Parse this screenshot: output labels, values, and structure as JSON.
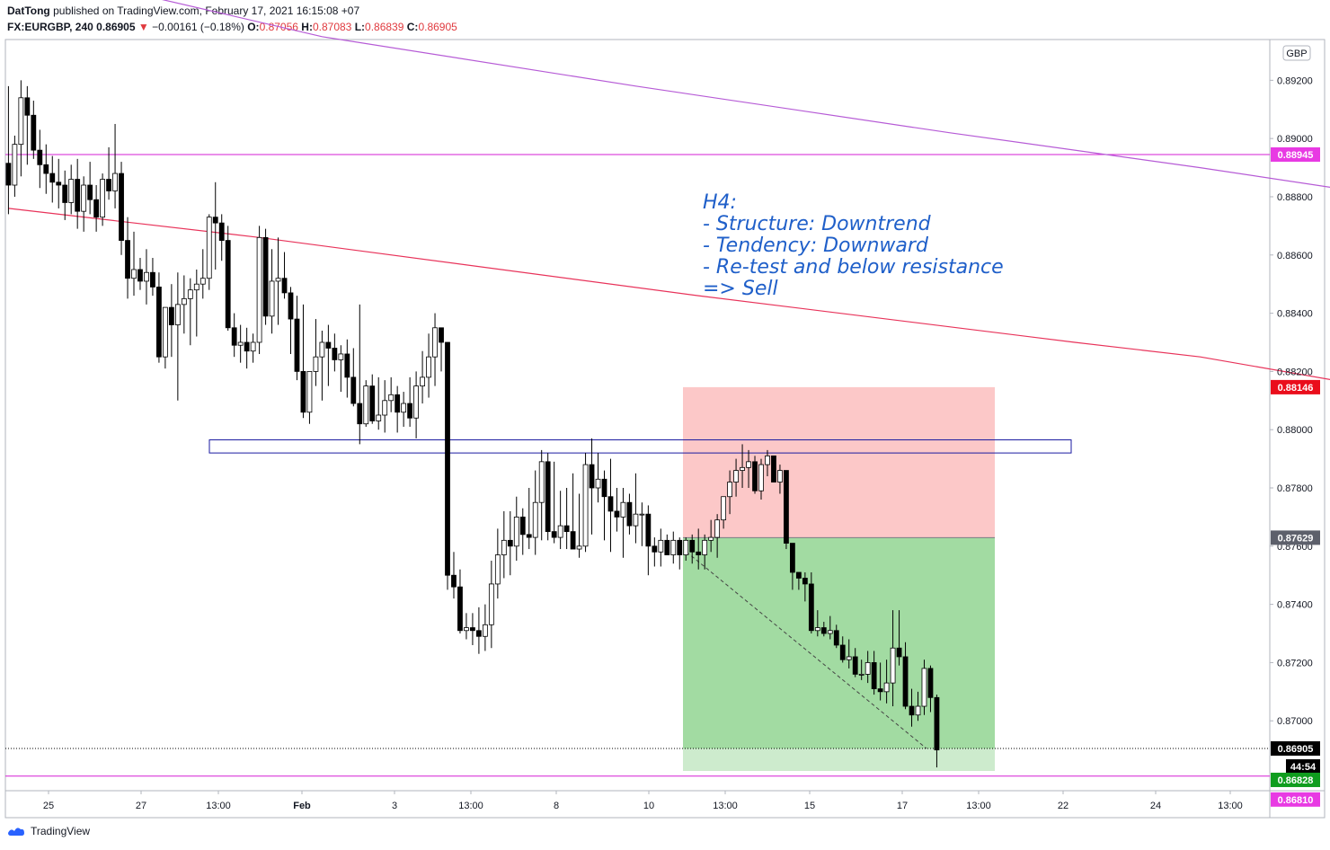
{
  "header": {
    "author": "DatTong",
    "published_text": "published on TradingView.com, February 17, 2021 16:15:08 +07",
    "symbol": "FX:EURGBP, 240",
    "last": "0.86905",
    "change": "−0.00161 (−0.18%)",
    "o_label": "O:",
    "o_value": "0.87056",
    "h_label": "H:",
    "h_value": "0.87083",
    "l_label": "L:",
    "l_value": "0.86839",
    "c_label": "C:",
    "c_value": "0.86905"
  },
  "footer": {
    "brand": "TradingView"
  },
  "colors": {
    "up_body": "#ffffff",
    "down_body": "#000000",
    "wick": "#000000",
    "ma_fast": "#e8335a",
    "ma_slow": "#b65bd6",
    "hline": "#d61fd6",
    "zone_border": "#1a1aa0",
    "stop_zone": "#fcc8c8",
    "target_zone": "#a2dba2",
    "annotation": "#1f5fc9",
    "axis_text": "#131722"
  },
  "chart_data": {
    "type": "candlestick",
    "currency_badge": "GBP",
    "ylim": [
      0.8676,
      0.8934
    ],
    "y_ticks": [
      "0.89200",
      "0.89000",
      "0.88800",
      "0.88600",
      "0.88400",
      "0.88200",
      "0.88000",
      "0.87800",
      "0.87600",
      "0.87400",
      "0.87200",
      "0.87000"
    ],
    "x_ticks": [
      "25",
      "27",
      "13:00",
      "Feb",
      "3",
      "13:00",
      "8",
      "10",
      "13:00",
      "15",
      "17",
      "13:00",
      "22",
      "24",
      "13:00"
    ],
    "price_labels": [
      {
        "text": "0.88945",
        "role": "horizontal line",
        "bg": "#e83ae3",
        "fg": "#ffffff"
      },
      {
        "text": "0.88146",
        "role": "stop",
        "bg": "#ea0d1b",
        "fg": "#ffffff"
      },
      {
        "text": "0.87629",
        "role": "entry",
        "bg": "#5d606b",
        "fg": "#ffffff"
      },
      {
        "text": "0.86905",
        "role": "last price",
        "bg": "#000000",
        "fg": "#ffffff"
      },
      {
        "text": "44:54",
        "role": "bar countdown",
        "bg": "#000000",
        "fg": "#ffffff"
      },
      {
        "text": "0.86828",
        "role": "target",
        "bg": "#0f9d1e",
        "fg": "#ffffff"
      },
      {
        "text": "0.86810",
        "role": "horizontal line",
        "bg": "#e83ae3",
        "fg": "#ffffff"
      }
    ],
    "annotation": [
      "H4:",
      "- Structure: Downtrend",
      "- Tendency: Downward",
      "- Re-test and below resistance",
      "=> Sell"
    ],
    "horizontal_lines": [
      0.88945,
      0.8681
    ],
    "resistance_zone": [
      0.8792,
      0.87965
    ],
    "position": {
      "type": "short",
      "entry": 0.87629,
      "stop": 0.88146,
      "target": 0.86828
    },
    "ma_fast": [
      [
        0,
        0.8876
      ],
      [
        40,
        0.8866
      ],
      [
        110,
        0.8846
      ],
      [
        170,
        0.883
      ],
      [
        190,
        0.8825
      ],
      [
        230,
        0.881
      ],
      [
        255,
        0.88
      ],
      [
        290,
        0.8787
      ],
      [
        300,
        0.8781
      ],
      [
        310,
        0.8772
      ]
    ],
    "ma_slow": [
      [
        20,
        0.895
      ],
      [
        50,
        0.8935
      ],
      [
        100,
        0.8918
      ],
      [
        150,
        0.8902
      ],
      [
        190,
        0.889
      ],
      [
        230,
        0.8877
      ],
      [
        270,
        0.886
      ],
      [
        310,
        0.8822
      ]
    ],
    "candles": [
      [
        0.88915,
        0.8918,
        0.8874,
        0.8884
      ],
      [
        0.8884,
        0.8901,
        0.888,
        0.8898
      ],
      [
        0.8898,
        0.892,
        0.8887,
        0.8914
      ],
      [
        0.8914,
        0.8918,
        0.8891,
        0.8908
      ],
      [
        0.8908,
        0.8913,
        0.8893,
        0.8896
      ],
      [
        0.8896,
        0.8903,
        0.8883,
        0.8891
      ],
      [
        0.8891,
        0.8898,
        0.8881,
        0.8888
      ],
      [
        0.8888,
        0.8894,
        0.8878,
        0.8885
      ],
      [
        0.8885,
        0.8893,
        0.8876,
        0.8884
      ],
      [
        0.8884,
        0.8889,
        0.8872,
        0.8878
      ],
      [
        0.8878,
        0.8891,
        0.8874,
        0.8886
      ],
      [
        0.8886,
        0.8893,
        0.8869,
        0.8875
      ],
      [
        0.8875,
        0.8887,
        0.8868,
        0.8884
      ],
      [
        0.8884,
        0.8892,
        0.8874,
        0.8879
      ],
      [
        0.8879,
        0.8884,
        0.8868,
        0.8873
      ],
      [
        0.8873,
        0.8888,
        0.887,
        0.8886
      ],
      [
        0.8886,
        0.8897,
        0.8879,
        0.8882
      ],
      [
        0.8882,
        0.8905,
        0.8876,
        0.8888
      ],
      [
        0.8888,
        0.8892,
        0.886,
        0.8865
      ],
      [
        0.8865,
        0.8873,
        0.8845,
        0.8852
      ],
      [
        0.8852,
        0.8868,
        0.8846,
        0.8855
      ],
      [
        0.8855,
        0.8859,
        0.8848,
        0.8851
      ],
      [
        0.8851,
        0.8862,
        0.8843,
        0.8854
      ],
      [
        0.8854,
        0.8859,
        0.8846,
        0.8849
      ],
      [
        0.8849,
        0.8854,
        0.8823,
        0.8825
      ],
      [
        0.8825,
        0.8841,
        0.8821,
        0.8842
      ],
      [
        0.8842,
        0.885,
        0.8825,
        0.8836
      ],
      [
        0.8836,
        0.8854,
        0.881,
        0.8843
      ],
      [
        0.8843,
        0.8853,
        0.8833,
        0.8845
      ],
      [
        0.8845,
        0.8852,
        0.8829,
        0.8848
      ],
      [
        0.8848,
        0.8855,
        0.8832,
        0.885
      ],
      [
        0.885,
        0.8862,
        0.8845,
        0.8852
      ],
      [
        0.8852,
        0.8874,
        0.8848,
        0.8873
      ],
      [
        0.8873,
        0.8885,
        0.8855,
        0.8871
      ],
      [
        0.8871,
        0.8874,
        0.8858,
        0.8865
      ],
      [
        0.8865,
        0.887,
        0.8834,
        0.8835
      ],
      [
        0.8835,
        0.884,
        0.8825,
        0.8829
      ],
      [
        0.8829,
        0.8836,
        0.8823,
        0.883
      ],
      [
        0.883,
        0.8835,
        0.8821,
        0.8827
      ],
      [
        0.8827,
        0.8833,
        0.8823,
        0.883
      ],
      [
        0.883,
        0.887,
        0.8826,
        0.8866
      ],
      [
        0.8866,
        0.8869,
        0.8836,
        0.8839
      ],
      [
        0.8839,
        0.8862,
        0.8833,
        0.8851
      ],
      [
        0.8851,
        0.8866,
        0.8836,
        0.8852
      ],
      [
        0.8852,
        0.8861,
        0.8845,
        0.8847
      ],
      [
        0.8847,
        0.8849,
        0.8826,
        0.8838
      ],
      [
        0.8838,
        0.8846,
        0.8817,
        0.882
      ],
      [
        0.882,
        0.8843,
        0.8804,
        0.8806
      ],
      [
        0.8806,
        0.882,
        0.8802,
        0.882
      ],
      [
        0.882,
        0.8838,
        0.8815,
        0.8825
      ],
      [
        0.8825,
        0.8834,
        0.881,
        0.883
      ],
      [
        0.883,
        0.8836,
        0.8815,
        0.8828
      ],
      [
        0.8828,
        0.8833,
        0.882,
        0.8824
      ],
      [
        0.8824,
        0.8829,
        0.8813,
        0.8826
      ],
      [
        0.8826,
        0.8831,
        0.8811,
        0.8818
      ],
      [
        0.8818,
        0.8828,
        0.8808,
        0.8809
      ],
      [
        0.8809,
        0.8843,
        0.8795,
        0.8802
      ],
      [
        0.8802,
        0.8817,
        0.8801,
        0.8815
      ],
      [
        0.8815,
        0.8819,
        0.8802,
        0.8803
      ],
      [
        0.8803,
        0.8818,
        0.88,
        0.8805
      ],
      [
        0.8805,
        0.8817,
        0.8799,
        0.881
      ],
      [
        0.881,
        0.8818,
        0.8806,
        0.8812
      ],
      [
        0.8812,
        0.8815,
        0.8799,
        0.8806
      ],
      [
        0.8806,
        0.8813,
        0.8801,
        0.8809
      ],
      [
        0.8809,
        0.8818,
        0.8801,
        0.8804
      ],
      [
        0.8804,
        0.882,
        0.8797,
        0.8815
      ],
      [
        0.8815,
        0.8827,
        0.8809,
        0.8818
      ],
      [
        0.8818,
        0.8833,
        0.8811,
        0.8825
      ],
      [
        0.8825,
        0.884,
        0.8815,
        0.8835
      ],
      [
        0.8835,
        0.8833,
        0.882,
        0.883
      ],
      [
        0.883,
        0.883,
        0.8745,
        0.875
      ],
      [
        0.875,
        0.8758,
        0.8742,
        0.8746
      ],
      [
        0.8746,
        0.8752,
        0.873,
        0.8731
      ],
      [
        0.8731,
        0.8737,
        0.8728,
        0.8732
      ],
      [
        0.8732,
        0.8737,
        0.8726,
        0.8731
      ],
      [
        0.8731,
        0.8739,
        0.8723,
        0.8729
      ],
      [
        0.8729,
        0.874,
        0.8724,
        0.8733
      ],
      [
        0.8733,
        0.8755,
        0.8725,
        0.8747
      ],
      [
        0.8747,
        0.8766,
        0.8742,
        0.8757
      ],
      [
        0.8757,
        0.8772,
        0.8749,
        0.8762
      ],
      [
        0.8762,
        0.8772,
        0.875,
        0.876
      ],
      [
        0.876,
        0.8777,
        0.8755,
        0.877
      ],
      [
        0.877,
        0.8773,
        0.8757,
        0.8764
      ],
      [
        0.8764,
        0.878,
        0.8759,
        0.8763
      ],
      [
        0.8763,
        0.8786,
        0.8757,
        0.8775
      ],
      [
        0.8775,
        0.8793,
        0.8762,
        0.8789
      ],
      [
        0.8789,
        0.8792,
        0.8762,
        0.8765
      ],
      [
        0.8765,
        0.8789,
        0.8761,
        0.8763
      ],
      [
        0.8763,
        0.8779,
        0.8759,
        0.8767
      ],
      [
        0.8767,
        0.878,
        0.8759,
        0.8765
      ],
      [
        0.8765,
        0.8785,
        0.876,
        0.8759
      ],
      [
        0.8759,
        0.8778,
        0.8756,
        0.876
      ],
      [
        0.876,
        0.8792,
        0.8758,
        0.8788
      ],
      [
        0.8788,
        0.8797,
        0.8764,
        0.878
      ],
      [
        0.878,
        0.8792,
        0.8775,
        0.8783
      ],
      [
        0.8783,
        0.8786,
        0.8762,
        0.8777
      ],
      [
        0.8777,
        0.879,
        0.8758,
        0.8772
      ],
      [
        0.8772,
        0.878,
        0.8765,
        0.877
      ],
      [
        0.877,
        0.878,
        0.8756,
        0.8775
      ],
      [
        0.8775,
        0.8778,
        0.8764,
        0.8767
      ],
      [
        0.8767,
        0.8785,
        0.8761,
        0.8771
      ],
      [
        0.8771,
        0.8775,
        0.876,
        0.8771
      ],
      [
        0.8771,
        0.8774,
        0.875,
        0.876
      ],
      [
        0.876,
        0.8763,
        0.8753,
        0.8758
      ],
      [
        0.8758,
        0.8766,
        0.8753,
        0.8762
      ],
      [
        0.8762,
        0.8764,
        0.8757,
        0.8757
      ],
      [
        0.8757,
        0.8765,
        0.8754,
        0.8762
      ],
      [
        0.8762,
        0.8763,
        0.8752,
        0.8757
      ],
      [
        0.8757,
        0.8763,
        0.8755,
        0.8762
      ],
      [
        0.8762,
        0.8764,
        0.8754,
        0.8758
      ],
      [
        0.8758,
        0.8766,
        0.8752,
        0.8757
      ],
      [
        0.8757,
        0.8764,
        0.8752,
        0.8762
      ],
      [
        0.8762,
        0.8769,
        0.8758,
        0.8763
      ],
      [
        0.8763,
        0.8771,
        0.8756,
        0.8769
      ],
      [
        0.8769,
        0.8777,
        0.8766,
        0.8777
      ],
      [
        0.8777,
        0.8786,
        0.8771,
        0.8782
      ],
      [
        0.8782,
        0.879,
        0.8777,
        0.8786
      ],
      [
        0.8786,
        0.8795,
        0.878,
        0.8787
      ],
      [
        0.8787,
        0.8793,
        0.878,
        0.8789
      ],
      [
        0.8789,
        0.8791,
        0.8778,
        0.8779
      ],
      [
        0.8779,
        0.879,
        0.8776,
        0.8788
      ],
      [
        0.8788,
        0.8793,
        0.8784,
        0.8791
      ],
      [
        0.8791,
        0.8791,
        0.8782,
        0.8782
      ],
      [
        0.8782,
        0.8788,
        0.8778,
        0.8786
      ],
      [
        0.8786,
        0.8786,
        0.8759,
        0.8761
      ],
      [
        0.8761,
        0.8761,
        0.8745,
        0.8751
      ],
      [
        0.8751,
        0.8751,
        0.8745,
        0.8749
      ],
      [
        0.8749,
        0.8751,
        0.8741,
        0.8747
      ],
      [
        0.8747,
        0.8751,
        0.873,
        0.8731
      ],
      [
        0.8731,
        0.8738,
        0.8729,
        0.8732
      ],
      [
        0.8732,
        0.8734,
        0.8729,
        0.873
      ],
      [
        0.873,
        0.8736,
        0.8728,
        0.8731
      ],
      [
        0.8731,
        0.8733,
        0.8725,
        0.8726
      ],
      [
        0.8726,
        0.8729,
        0.872,
        0.8721
      ],
      [
        0.8721,
        0.8728,
        0.8718,
        0.8722
      ],
      [
        0.8722,
        0.8725,
        0.8715,
        0.8716
      ],
      [
        0.8716,
        0.8721,
        0.8714,
        0.8716
      ],
      [
        0.8716,
        0.8724,
        0.8713,
        0.872
      ],
      [
        0.872,
        0.8724,
        0.8709,
        0.8711
      ],
      [
        0.8711,
        0.872,
        0.8707,
        0.871
      ],
      [
        0.871,
        0.8721,
        0.8706,
        0.8713
      ],
      [
        0.8713,
        0.8738,
        0.8705,
        0.8725
      ],
      [
        0.8725,
        0.8738,
        0.8719,
        0.8722
      ],
      [
        0.8722,
        0.8727,
        0.8704,
        0.8705
      ],
      [
        0.8705,
        0.8711,
        0.8698,
        0.8702
      ],
      [
        0.8702,
        0.871,
        0.87,
        0.8705
      ],
      [
        0.8705,
        0.8721,
        0.8702,
        0.8718
      ],
      [
        0.8718,
        0.8719,
        0.8703,
        0.8708
      ],
      [
        0.8708,
        0.8709,
        0.8684,
        0.869
      ]
    ]
  }
}
